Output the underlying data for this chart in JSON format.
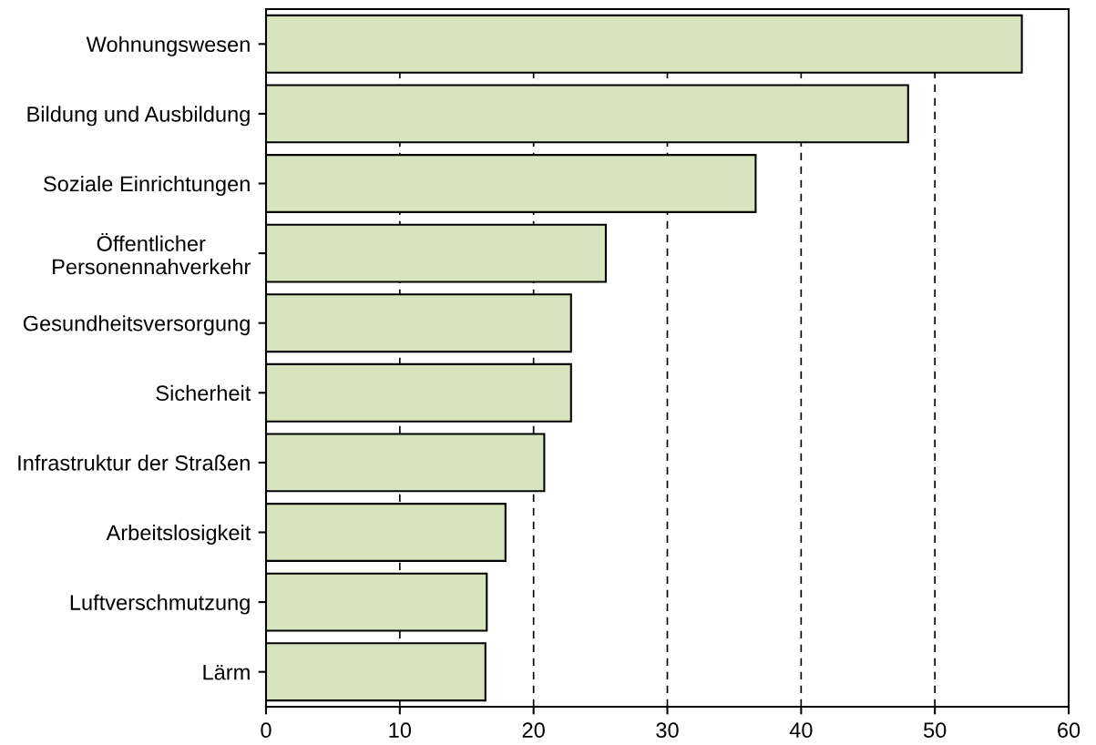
{
  "chart_data": {
    "type": "bar",
    "orientation": "horizontal",
    "categories": [
      "Wohnungswesen",
      "Bildung und Ausbildung",
      "Soziale Einrichtungen",
      "Öffentlicher\nPersonennahverkehr",
      "Gesundheitsversorgung",
      "Sicherheit",
      "Infrastruktur der Straßen",
      "Arbeitslosigkeit",
      "Luftverschmutzung",
      "Lärm"
    ],
    "values": [
      56.5,
      48.0,
      36.6,
      25.4,
      22.8,
      22.8,
      20.8,
      17.9,
      16.5,
      16.4
    ],
    "color": "#d7e4bd",
    "xlim": [
      0,
      60
    ],
    "xticks": [
      0,
      10,
      20,
      30,
      40,
      50,
      60
    ],
    "grid": "x",
    "legend": false
  }
}
